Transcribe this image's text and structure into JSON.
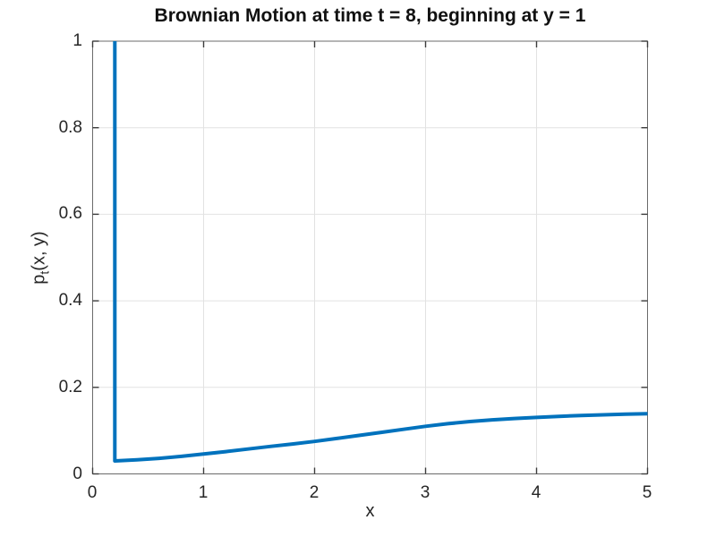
{
  "figure": {
    "title": "Brownian Motion at time t = 8, beginning at y = 1"
  },
  "axes": {
    "xlabel": "x",
    "ylabel_base": "p",
    "ylabel_sub": "t",
    "ylabel_rest": "(x, y)",
    "x_tick_labels": [
      "0",
      "1",
      "2",
      "3",
      "4",
      "5"
    ],
    "y_tick_labels": [
      "0",
      "0.2",
      "0.4",
      "0.6",
      "0.8",
      "1"
    ]
  },
  "style": {
    "line_color": "#0072bd",
    "grid_color": "#e2e2e2",
    "box_color": "#6b6b6b",
    "tick_color": "#3c3c3c",
    "text_color": "#262626",
    "background": "#ffffff",
    "line_width": 4
  },
  "chart_data": {
    "type": "line",
    "title": "Brownian Motion at time t = 8, beginning at y = 1",
    "xlabel": "x",
    "ylabel": "p_t(x, y)",
    "xlim": [
      0,
      5
    ],
    "ylim": [
      0,
      1
    ],
    "xticks": [
      0,
      1,
      2,
      3,
      4,
      5
    ],
    "yticks": [
      0,
      0.2,
      0.4,
      0.6,
      0.8,
      1
    ],
    "grid": true,
    "legend": false,
    "series": [
      {
        "name": "p_t(x, y)",
        "color": "#0072bd",
        "note": "vertical spike at x = 0.2 clipped at ylim max of 1, then smooth rise",
        "x": [
          0.2,
          0.2,
          0.4,
          0.6,
          0.8,
          1.0,
          1.2,
          1.4,
          1.6,
          1.8,
          2.0,
          2.2,
          2.4,
          2.6,
          2.8,
          3.0,
          3.2,
          3.4,
          3.6,
          3.8,
          4.0,
          4.2,
          4.4,
          4.6,
          4.8,
          5.0
        ],
        "y": [
          1.0,
          0.03,
          0.0325,
          0.036,
          0.0405,
          0.046,
          0.0515,
          0.0575,
          0.0635,
          0.069,
          0.075,
          0.082,
          0.089,
          0.096,
          0.103,
          0.11,
          0.116,
          0.121,
          0.125,
          0.128,
          0.1305,
          0.133,
          0.135,
          0.1365,
          0.138,
          0.139
        ]
      }
    ]
  }
}
